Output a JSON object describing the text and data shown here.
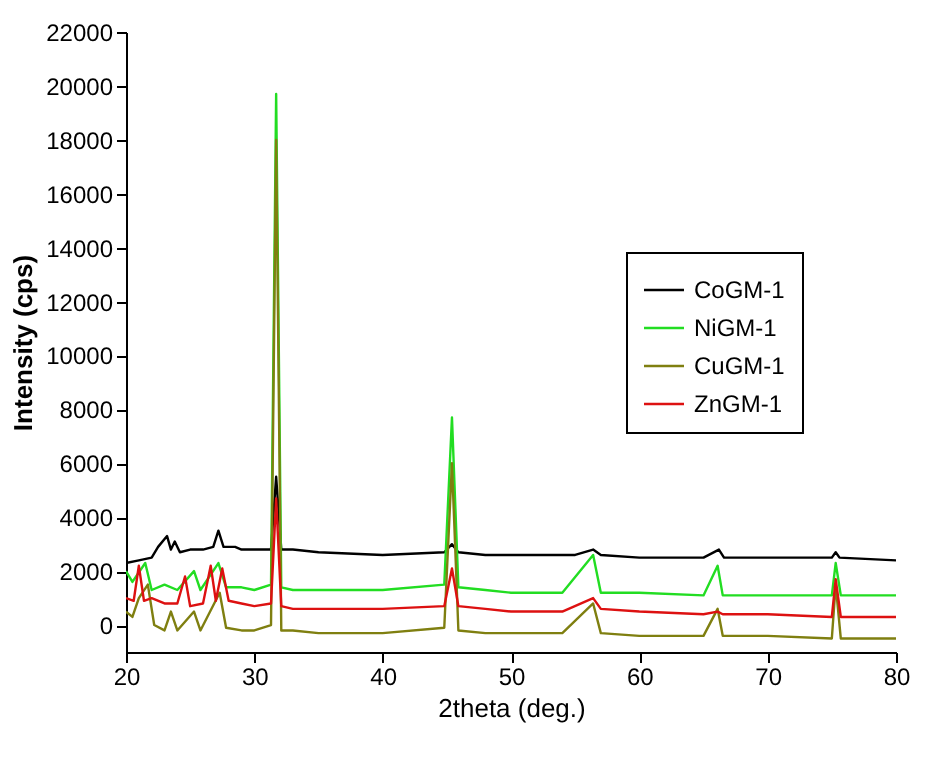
{
  "chart_data": {
    "type": "line",
    "xlabel": "2theta (deg.)",
    "ylabel": "Intensity (cps)",
    "xlim": [
      20,
      80
    ],
    "ylim": [
      -1000,
      22000
    ],
    "xticks": [
      20,
      30,
      40,
      50,
      60,
      70,
      80
    ],
    "yticks": [
      0,
      2000,
      4000,
      6000,
      8000,
      10000,
      12000,
      14000,
      16000,
      18000,
      20000,
      22000
    ],
    "grid": false,
    "legend": "right",
    "line_style": "solid",
    "marker": "none",
    "series": [
      {
        "name": "CoGM-1",
        "color": "#000000",
        "x": [
          20,
          21,
          22,
          22.5,
          23.2,
          23.5,
          23.8,
          24.2,
          25,
          26,
          26.8,
          27.2,
          27.6,
          28.5,
          29,
          30,
          31.3,
          31.7,
          32.1,
          33,
          35,
          40,
          44.8,
          45.4,
          45.9,
          48,
          50,
          55,
          56.4,
          57,
          60,
          65,
          66.2,
          66.6,
          70,
          75,
          75.3,
          75.6,
          80
        ],
        "values": [
          2300,
          2400,
          2500,
          2900,
          3300,
          2800,
          3100,
          2700,
          2800,
          2800,
          2900,
          3500,
          2900,
          2900,
          2800,
          2800,
          2800,
          5500,
          2800,
          2800,
          2700,
          2600,
          2700,
          3000,
          2700,
          2600,
          2600,
          2600,
          2800,
          2600,
          2500,
          2500,
          2800,
          2500,
          2500,
          2500,
          2700,
          2500,
          2400
        ]
      },
      {
        "name": "NiGM-1",
        "color": "#22dd22",
        "x": [
          20,
          20.5,
          21.5,
          22,
          23,
          24,
          25.3,
          25.8,
          27.2,
          27.8,
          29,
          30,
          31.3,
          31.7,
          32.1,
          33,
          35,
          40,
          44.8,
          45.4,
          45.9,
          48,
          50,
          54,
          56.4,
          57,
          60,
          65,
          66.1,
          66.5,
          70,
          75,
          75.3,
          75.7,
          80
        ],
        "values": [
          2000,
          1600,
          2300,
          1300,
          1500,
          1300,
          2000,
          1300,
          2300,
          1400,
          1400,
          1300,
          1500,
          19700,
          1400,
          1300,
          1300,
          1300,
          1500,
          7700,
          1400,
          1300,
          1200,
          1200,
          2600,
          1200,
          1200,
          1100,
          2200,
          1100,
          1100,
          1100,
          2300,
          1100,
          1100
        ]
      },
      {
        "name": "CuGM-1",
        "color": "#7f7f10",
        "x": [
          20,
          20.5,
          21,
          21.7,
          22.2,
          23,
          23.5,
          24,
          25.3,
          25.8,
          27.3,
          27.8,
          29,
          30,
          31.3,
          31.7,
          32.1,
          33,
          35,
          40,
          44.8,
          45.4,
          45.9,
          48,
          50,
          54,
          56.4,
          57,
          60,
          65,
          66.1,
          66.5,
          70,
          75,
          75.3,
          75.7,
          80
        ],
        "values": [
          500,
          300,
          1000,
          1500,
          0,
          -200,
          500,
          -200,
          500,
          -200,
          1200,
          -100,
          -200,
          -200,
          0,
          18000,
          -200,
          -200,
          -300,
          -300,
          -100,
          6000,
          -200,
          -300,
          -300,
          -300,
          800,
          -300,
          -400,
          -400,
          600,
          -400,
          -400,
          -500,
          1500,
          -500,
          -500
        ]
      },
      {
        "name": "ZnGM-1",
        "color": "#dd1111",
        "x": [
          20,
          20.6,
          21,
          21.4,
          22,
          23,
          24,
          24.6,
          25,
          26,
          26.6,
          27,
          27.5,
          28,
          29,
          30,
          31.3,
          31.7,
          32.1,
          33,
          35,
          40,
          44.8,
          45.4,
          45.9,
          48,
          50,
          54,
          56.4,
          57,
          60,
          65,
          66.1,
          66.5,
          70,
          75,
          75.3,
          75.7,
          80
        ],
        "values": [
          1000,
          900,
          2200,
          900,
          1000,
          800,
          800,
          1800,
          700,
          800,
          2200,
          900,
          2100,
          900,
          800,
          700,
          800,
          4700,
          700,
          600,
          600,
          600,
          700,
          2100,
          700,
          600,
          500,
          500,
          1000,
          600,
          500,
          400,
          500,
          400,
          400,
          300,
          1700,
          300,
          300
        ]
      }
    ]
  }
}
